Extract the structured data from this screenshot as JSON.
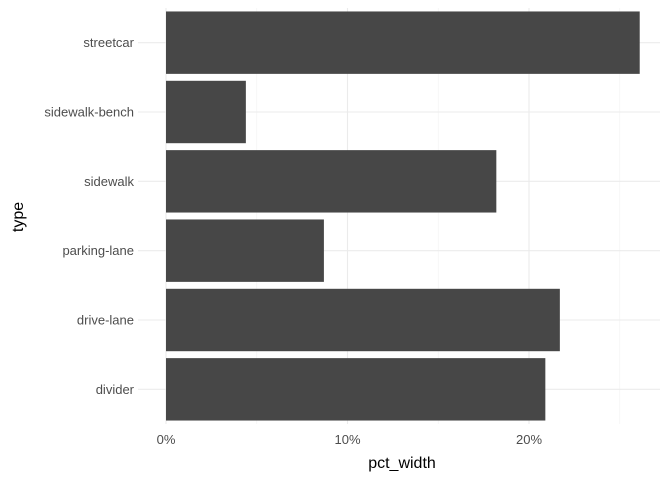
{
  "chart_data": {
    "type": "bar",
    "orientation": "horizontal",
    "xlabel": "pct_width",
    "ylabel": "type",
    "categories": [
      "divider",
      "drive-lane",
      "parking-lane",
      "sidewalk",
      "sidewalk-bench",
      "streetcar"
    ],
    "values": [
      20.9,
      21.7,
      8.7,
      18.2,
      4.4,
      26.1
    ],
    "xlim": [
      0,
      27
    ],
    "x_ticks": [
      0,
      10,
      20
    ],
    "x_tick_labels": [
      "0%",
      "10%",
      "20%"
    ],
    "grid": true,
    "legend": "none",
    "bar_color": "#474747",
    "grid_color": "#ebebeb"
  }
}
